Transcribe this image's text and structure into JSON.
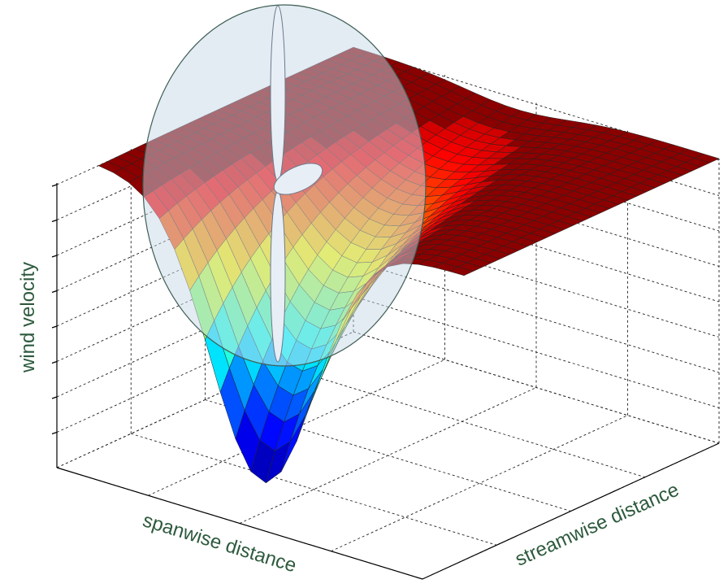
{
  "axes": {
    "z_label": "wind velocity",
    "x_label": "spanwise distance",
    "y_label": "streamwise distance"
  }
}
